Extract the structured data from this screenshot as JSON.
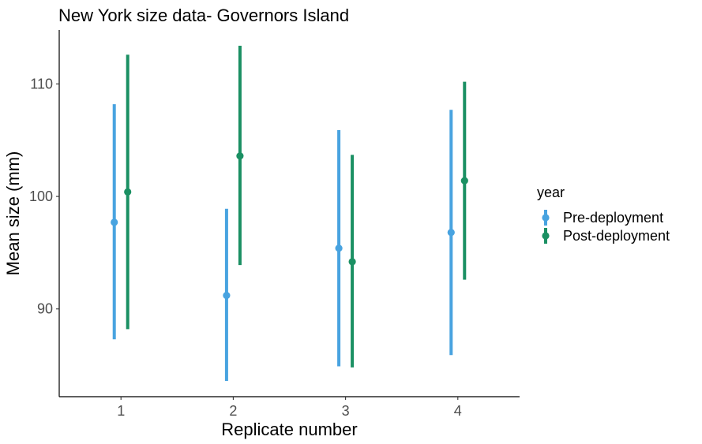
{
  "chart_data": {
    "type": "scatter",
    "subtype": "pointrange",
    "title": "New York size data- Governors Island",
    "xlabel": "Replicate number",
    "ylabel": "Mean size (mm)",
    "categories": [
      "1",
      "2",
      "3",
      "4"
    ],
    "ylim": [
      82.2,
      114.8
    ],
    "yticks": [
      90,
      100,
      110
    ],
    "grid": false,
    "legend": {
      "title": "year",
      "position": "right"
    },
    "series": [
      {
        "name": "Pre-deployment",
        "color": "#48A3E0",
        "points": [
          {
            "x": "1",
            "y": 97.7,
            "ymin": 87.3,
            "ymax": 108.2
          },
          {
            "x": "2",
            "y": 91.2,
            "ymin": 83.6,
            "ymax": 98.9
          },
          {
            "x": "3",
            "y": 95.4,
            "ymin": 84.9,
            "ymax": 105.9
          },
          {
            "x": "4",
            "y": 96.8,
            "ymin": 85.9,
            "ymax": 107.7
          }
        ]
      },
      {
        "name": "Post-deployment",
        "color": "#1B9063",
        "points": [
          {
            "x": "1",
            "y": 100.4,
            "ymin": 88.2,
            "ymax": 112.6
          },
          {
            "x": "2",
            "y": 103.6,
            "ymin": 93.9,
            "ymax": 113.4
          },
          {
            "x": "3",
            "y": 94.2,
            "ymin": 84.8,
            "ymax": 103.7
          },
          {
            "x": "4",
            "y": 101.4,
            "ymin": 92.6,
            "ymax": 110.2
          }
        ]
      }
    ]
  }
}
